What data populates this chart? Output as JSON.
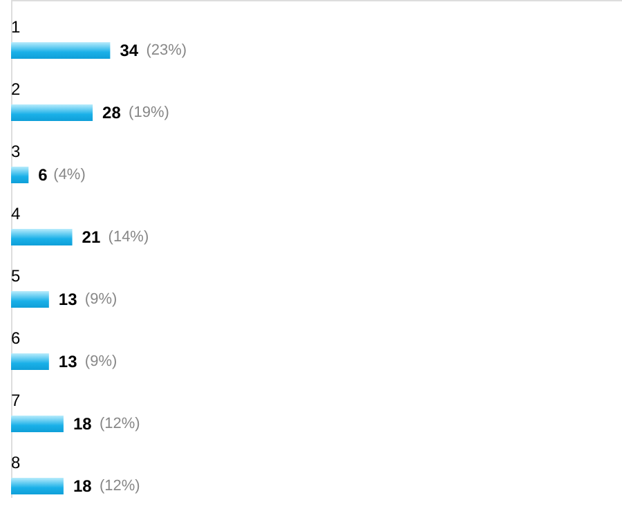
{
  "chart_data": {
    "type": "bar",
    "orientation": "horizontal",
    "categories": [
      "1",
      "2",
      "3",
      "4",
      "5",
      "6",
      "7",
      "8"
    ],
    "values": [
      34,
      28,
      6,
      21,
      13,
      13,
      18,
      18
    ],
    "color": "#1ab0e8",
    "data_labels": true,
    "annotations": [
      {
        "text": "(23%)",
        "x": 34,
        "y": "1"
      },
      {
        "text": "(19%)",
        "x": 28,
        "y": "2"
      },
      {
        "text": "(4%)",
        "x": 6,
        "y": "3"
      },
      {
        "text": "(14%)",
        "x": 21,
        "y": "4"
      },
      {
        "text": "(9%)",
        "x": 13,
        "y": "5"
      },
      {
        "text": "(9%)",
        "x": 13,
        "y": "6"
      },
      {
        "text": "(12%)",
        "x": 18,
        "y": "7"
      },
      {
        "text": "(12%)",
        "x": 18,
        "y": "8"
      }
    ]
  }
}
